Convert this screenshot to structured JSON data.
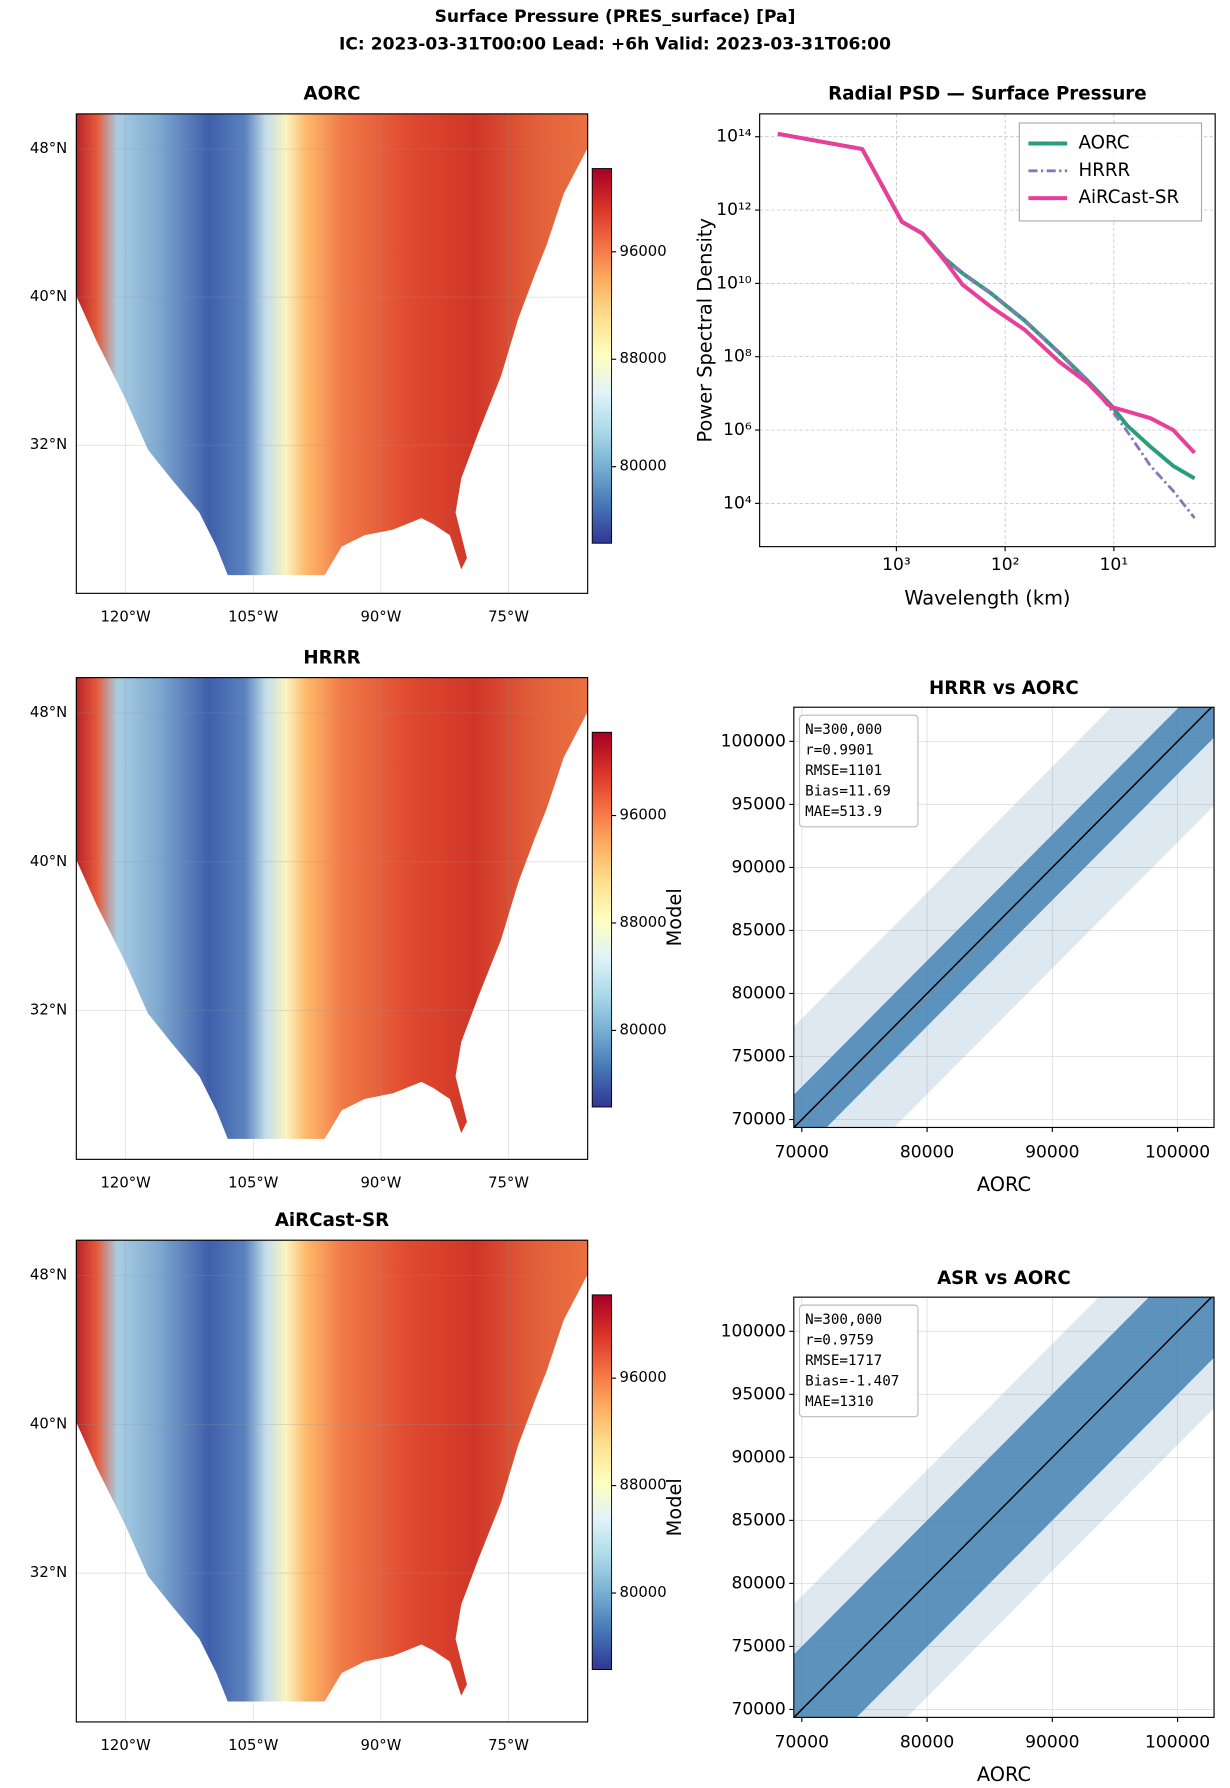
{
  "title": "Surface Pressure (PRES_surface) [Pa]",
  "subtitle": "IC: 2023-03-31T00:00  Lead: +6h  Valid: 2023-03-31T06:00",
  "chart_data": [
    {
      "type": "map",
      "title": "AORC",
      "xlim": [
        -125.8,
        -65.7
      ],
      "ylim": [
        24,
        49.9
      ],
      "xticks": [
        {
          "value": -120,
          "label": "120°W"
        },
        {
          "value": -105,
          "label": "105°W"
        },
        {
          "value": -90,
          "label": "90°W"
        },
        {
          "value": -75,
          "label": "75°W"
        }
      ],
      "yticks": [
        {
          "value": 32,
          "label": "32°N"
        },
        {
          "value": 40,
          "label": "40°N"
        },
        {
          "value": 48,
          "label": "48°N"
        }
      ],
      "colormap": "RdYlBu_r",
      "clim": [
        74300,
        102200
      ],
      "cticks": [
        80000,
        88000,
        96000
      ]
    },
    {
      "type": "line",
      "title": "Radial PSD — Surface Pressure",
      "xlabel": "Wavelength (km)",
      "ylabel": "Power Spectral Density",
      "xscale": "log",
      "yscale": "log",
      "grid": true,
      "legend": "upper right",
      "xlim": [
        18100,
        1.17
      ],
      "ylim": [
        660,
        420000000000000.0
      ],
      "xticks": [
        {
          "value": 1000,
          "label": "10³"
        },
        {
          "value": 100,
          "label": "10²"
        },
        {
          "value": 10,
          "label": "10¹"
        }
      ],
      "yticks": [
        {
          "value": 10000,
          "label": "10⁴"
        },
        {
          "value": 1000000,
          "label": "10⁶"
        },
        {
          "value": 100000000,
          "label": "10⁸"
        },
        {
          "value": 10000000000,
          "label": "10¹⁰"
        },
        {
          "value": 1000000000000,
          "label": "10¹²"
        },
        {
          "value": 100000000000000,
          "label": "10¹⁴"
        }
      ],
      "x": [
        12300,
        2060,
        890,
        575,
        355,
        247,
        135,
        66,
        32,
        17.4,
        10.7,
        7.5,
        4.6,
        2.85,
        1.81
      ],
      "series": [
        {
          "name": "AORC",
          "color": "#2a9d7c",
          "linestyle": "solid",
          "values": [
            120000000000000.0,
            46000000000000.0,
            480000000000.0,
            230000000000.0,
            46000000000.0,
            19000000000.0,
            5400000000.0,
            960000000.0,
            130000000.0,
            22000000.0,
            4900000.0,
            1300000.0,
            350000.0,
            105000.0,
            48000.0
          ]
        },
        {
          "name": "HRRR",
          "color": "#8878b8",
          "linestyle": "dashdot",
          "values": [
            120000000000000.0,
            46000000000000.0,
            480000000000.0,
            230000000000.0,
            46000000000.0,
            19000000000.0,
            5400000000.0,
            960000000.0,
            130000000.0,
            22000000.0,
            3700000.0,
            900000.0,
            105000.0,
            22000.0,
            4000.0
          ]
        },
        {
          "name": "AiRCast-SR",
          "color": "#e8409a",
          "linestyle": "solid",
          "values": [
            120000000000000.0,
            46000000000000.0,
            480000000000.0,
            230000000000.0,
            40000000000.0,
            9300000000.0,
            2300000000.0,
            540000000.0,
            74000000.0,
            19000000.0,
            4300000.0,
            3200000.0,
            2100000.0,
            1000000.0,
            240000.0
          ]
        }
      ]
    },
    {
      "type": "map",
      "title": "HRRR",
      "xlim": [
        -125.8,
        -65.7
      ],
      "ylim": [
        24,
        49.9
      ],
      "xticks": [
        {
          "value": -120,
          "label": "120°W"
        },
        {
          "value": -105,
          "label": "105°W"
        },
        {
          "value": -90,
          "label": "90°W"
        },
        {
          "value": -75,
          "label": "75°W"
        }
      ],
      "yticks": [
        {
          "value": 32,
          "label": "32°N"
        },
        {
          "value": 40,
          "label": "40°N"
        },
        {
          "value": 48,
          "label": "48°N"
        }
      ],
      "colormap": "RdYlBu_r",
      "clim": [
        74300,
        102200
      ],
      "cticks": [
        80000,
        88000,
        96000
      ]
    },
    {
      "type": "scatter",
      "title": "HRRR vs AORC",
      "xlabel": "AORC",
      "ylabel": "Model",
      "color": "#4682b4",
      "grid": true,
      "xlim": [
        69360,
        102910
      ],
      "ylim": [
        69370,
        102710
      ],
      "xticks": [
        70000,
        80000,
        90000,
        100000
      ],
      "yticks": [
        70000,
        75000,
        80000,
        85000,
        90000,
        95000,
        100000
      ],
      "annotations": [
        "N=300,000",
        "r=0.9901",
        "RMSE=1101",
        "Bias=11.69",
        "MAE=513.9"
      ]
    },
    {
      "type": "map",
      "title": "AiRCast-SR",
      "xlim": [
        -125.8,
        -65.7
      ],
      "ylim": [
        24,
        49.9
      ],
      "xticks": [
        {
          "value": -120,
          "label": "120°W"
        },
        {
          "value": -105,
          "label": "105°W"
        },
        {
          "value": -90,
          "label": "90°W"
        },
        {
          "value": -75,
          "label": "75°W"
        }
      ],
      "yticks": [
        {
          "value": 32,
          "label": "32°N"
        },
        {
          "value": 40,
          "label": "40°N"
        },
        {
          "value": 48,
          "label": "48°N"
        }
      ],
      "colormap": "RdYlBu_r",
      "clim": [
        74300,
        102200
      ],
      "cticks": [
        80000,
        88000,
        96000
      ]
    },
    {
      "type": "scatter",
      "title": "ASR vs AORC",
      "xlabel": "AORC",
      "ylabel": "Model",
      "color": "#4682b4",
      "grid": true,
      "xlim": [
        69360,
        102910
      ],
      "ylim": [
        69370,
        102710
      ],
      "xticks": [
        70000,
        80000,
        90000,
        100000
      ],
      "yticks": [
        70000,
        75000,
        80000,
        85000,
        90000,
        95000,
        100000
      ],
      "annotations": [
        "N=300,000",
        "r=0.9759",
        "RMSE=1717",
        "Bias=-1.407",
        "MAE=1310"
      ]
    }
  ]
}
